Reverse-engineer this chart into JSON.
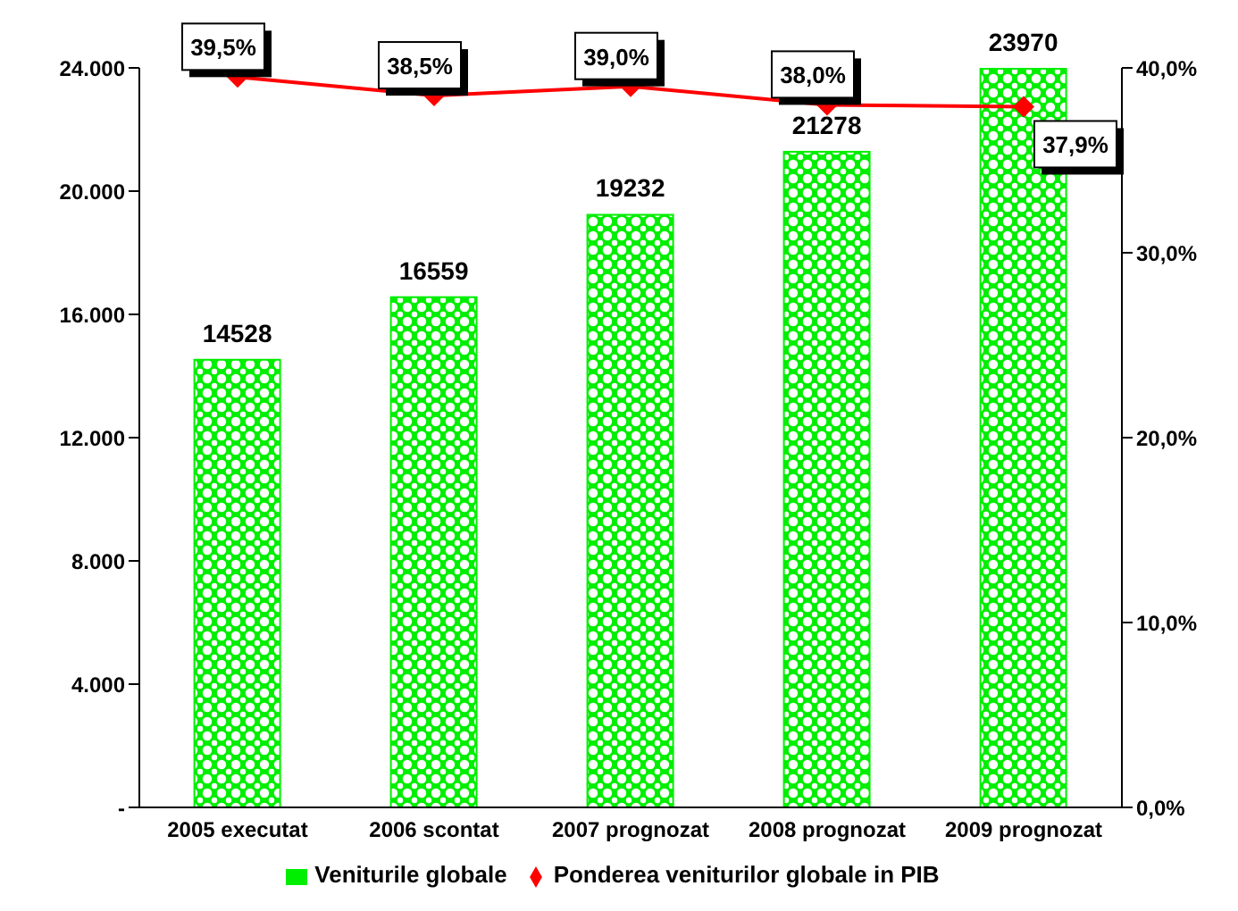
{
  "chart_data": {
    "type": "bar",
    "categories": [
      "2005 executat",
      "2006 scontat",
      "2007 prognozat",
      "2008 prognozat",
      "2009 prognozat"
    ],
    "series": [
      {
        "name": "Veniturile globale",
        "color": "#00ee00",
        "values": [
          14528,
          16559,
          19232,
          21278,
          23970
        ],
        "value_labels": [
          "14528",
          "16559",
          "19232",
          "21278",
          "23970"
        ]
      },
      {
        "name": "Ponderea veniturilor globale in PIB",
        "type": "line",
        "axis": "y2",
        "color": "#ff0000",
        "marker": "diamond",
        "values": [
          39.5,
          38.5,
          39.0,
          38.0,
          37.9
        ],
        "value_labels": [
          "39,5%",
          "38,5%",
          "39,0%",
          "38,0%",
          "37,9%"
        ]
      }
    ],
    "ylim": [
      0,
      24000
    ],
    "yticks": [
      {
        "value": 0,
        "label": "-"
      },
      {
        "value": 4000,
        "label": "4.000"
      },
      {
        "value": 8000,
        "label": "8.000"
      },
      {
        "value": 12000,
        "label": "12.000"
      },
      {
        "value": 16000,
        "label": "16.000"
      },
      {
        "value": 20000,
        "label": "20.000"
      },
      {
        "value": 24000,
        "label": "24.000"
      }
    ],
    "y2lim": [
      0,
      40
    ],
    "y2ticks": [
      {
        "value": 0,
        "label": "0,0%"
      },
      {
        "value": 10,
        "label": "10,0%"
      },
      {
        "value": 20,
        "label": "20,0%"
      },
      {
        "value": 30,
        "label": "30,0%"
      },
      {
        "value": 40,
        "label": "40,0%"
      }
    ],
    "grid": false,
    "legend": "bottom"
  }
}
